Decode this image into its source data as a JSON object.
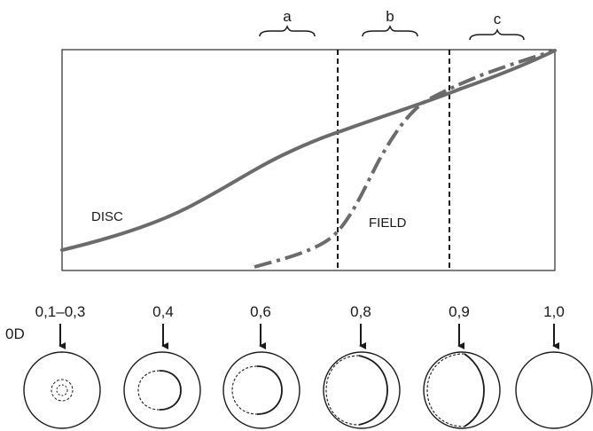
{
  "region_labels": [
    "a",
    "b",
    "c"
  ],
  "curve_labels": {
    "disc": "DISC",
    "field": "FIELD"
  },
  "od_axis_label": "0D",
  "od_values": [
    "0,1–0,3",
    "0,4",
    "0,6",
    "0,8",
    "0,9",
    "1,0"
  ],
  "colors": {
    "curve": "#6b6b6b",
    "ink": "#1a1a1a",
    "frame": "#2a2a2a"
  }
}
